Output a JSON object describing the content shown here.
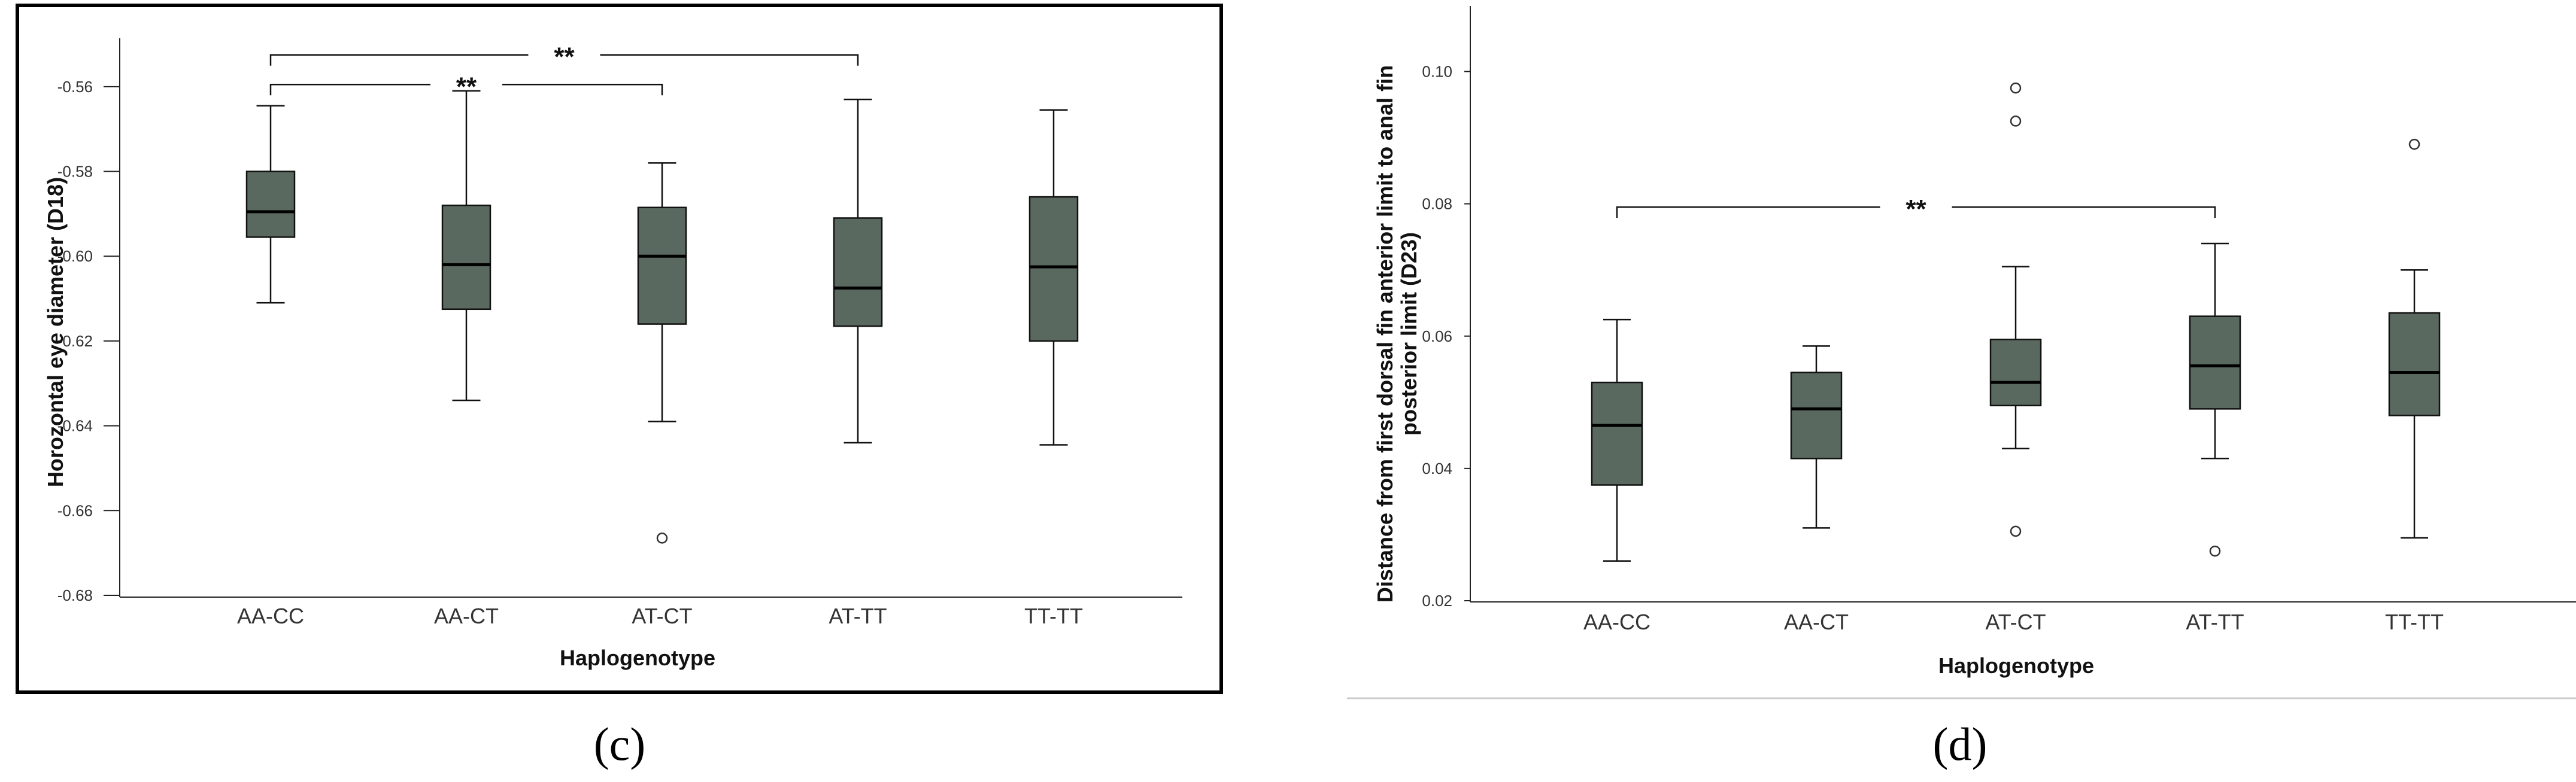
{
  "colors": {
    "box_fill": "#5a6960",
    "frame": "#000000",
    "axis": "#222222",
    "outlier_fill": "#ffffff"
  },
  "chart_data": [
    {
      "panel": "(c)",
      "type": "box",
      "xlabel": "Haplogenotype",
      "ylabel": "Horozontal eye diameter (D18)",
      "ylim": [
        -0.68,
        -0.55
      ],
      "yticks": [
        "-0.56",
        "-0.58",
        "-0.60",
        "-0.62",
        "-0.64",
        "-0.66",
        "-0.68"
      ],
      "ytick_values": [
        -0.56,
        -0.58,
        -0.6,
        -0.62,
        -0.64,
        -0.66,
        -0.68
      ],
      "categories": [
        "AA-CC",
        "AA-CT",
        "AT-CT",
        "AT-TT",
        "TT-TT"
      ],
      "boxes": [
        {
          "whisker_low": -0.611,
          "q1": -0.5955,
          "median": -0.5895,
          "q3": -0.58,
          "whisker_high": -0.5645,
          "outliers": []
        },
        {
          "whisker_low": -0.634,
          "q1": -0.6125,
          "median": -0.602,
          "q3": -0.588,
          "whisker_high": -0.561,
          "outliers": []
        },
        {
          "whisker_low": -0.639,
          "q1": -0.616,
          "median": -0.6,
          "q3": -0.5885,
          "whisker_high": -0.578,
          "outliers": [
            -0.6665
          ]
        },
        {
          "whisker_low": -0.644,
          "q1": -0.6165,
          "median": -0.6075,
          "q3": -0.591,
          "whisker_high": -0.563,
          "outliers": []
        },
        {
          "whisker_low": -0.6445,
          "q1": -0.62,
          "median": -0.6025,
          "q3": -0.586,
          "whisker_high": -0.5655,
          "outliers": []
        }
      ],
      "significance": [
        {
          "from": "AA-CC",
          "to": "AT-TT",
          "y": -0.5525,
          "label": "**"
        },
        {
          "from": "AA-CC",
          "to": "AT-CT",
          "y": -0.5595,
          "label": "**"
        }
      ]
    },
    {
      "panel": "(d)",
      "type": "box",
      "xlabel": "Haplogenotype",
      "ylabel_lines": [
        "Distance from first dorsal fin anterior limit to anal fin",
        "posterior limit (D23)"
      ],
      "ylim": [
        0.02,
        0.109
      ],
      "yticks": [
        "0.10",
        "0.08",
        "0.06",
        "0.04",
        "0.02"
      ],
      "ytick_values": [
        0.1,
        0.08,
        0.06,
        0.04,
        0.02
      ],
      "categories": [
        "AA-CC",
        "AA-CT",
        "AT-CT",
        "AT-TT",
        "TT-TT"
      ],
      "boxes": [
        {
          "whisker_low": 0.026,
          "q1": 0.0375,
          "median": 0.0465,
          "q3": 0.053,
          "whisker_high": 0.0625,
          "outliers": []
        },
        {
          "whisker_low": 0.031,
          "q1": 0.0415,
          "median": 0.049,
          "q3": 0.0545,
          "whisker_high": 0.0585,
          "outliers": []
        },
        {
          "whisker_low": 0.043,
          "q1": 0.0495,
          "median": 0.053,
          "q3": 0.0595,
          "whisker_high": 0.0705,
          "outliers": [
            0.0305,
            0.0925,
            0.0975
          ]
        },
        {
          "whisker_low": 0.0415,
          "q1": 0.049,
          "median": 0.0555,
          "q3": 0.063,
          "whisker_high": 0.074,
          "outliers": [
            0.0275
          ]
        },
        {
          "whisker_low": 0.0295,
          "q1": 0.048,
          "median": 0.0545,
          "q3": 0.0635,
          "whisker_high": 0.07,
          "outliers": [
            0.089
          ]
        }
      ],
      "significance": [
        {
          "from": "AA-CC",
          "to": "AT-TT",
          "y": 0.0795,
          "label": "**"
        }
      ]
    }
  ],
  "panels": {
    "c": {
      "label": "(c)"
    },
    "d": {
      "label": "(d)"
    }
  }
}
